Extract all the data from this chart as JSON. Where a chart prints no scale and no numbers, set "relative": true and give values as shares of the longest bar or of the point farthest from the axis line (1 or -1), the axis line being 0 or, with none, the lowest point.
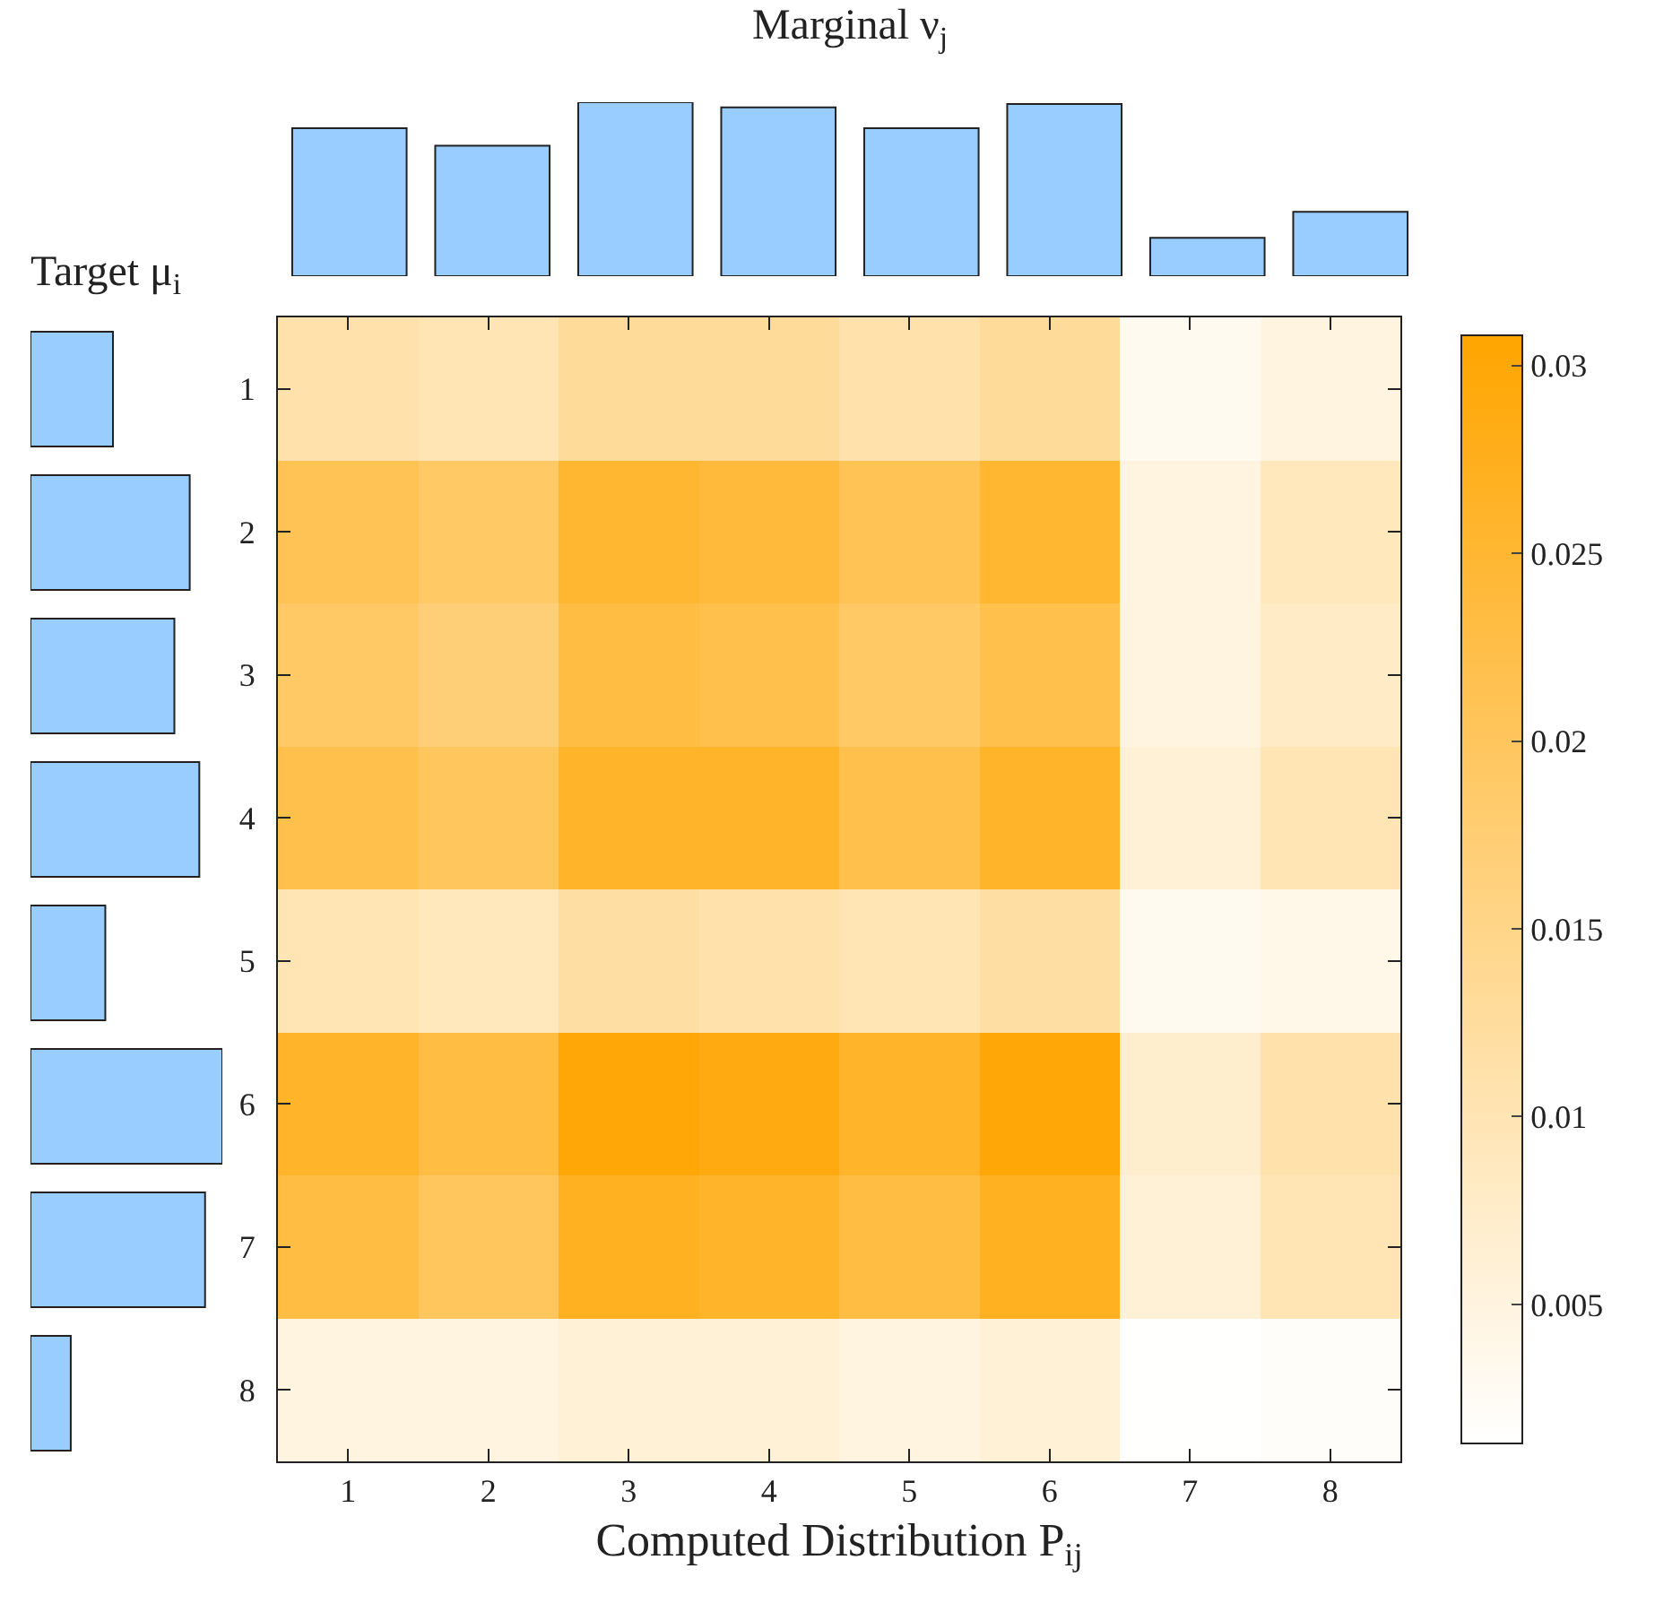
{
  "chart_data": [
    {
      "type": "bar",
      "title": "Marginal ν$_{j}$",
      "relative": true,
      "categories": [
        null,
        null,
        null,
        null,
        null,
        null,
        null,
        null
      ],
      "values": [
        0.85,
        0.75,
        1,
        0.97,
        0.85,
        0.99,
        0.22,
        0.37
      ],
      "color": "#99ccff"
    },
    {
      "type": "bar",
      "title": "Target μ$_{i}$",
      "relative": true,
      "orientation": "horizontal",
      "categories": [
        null,
        null,
        null,
        null,
        null,
        null,
        null,
        null
      ],
      "values": [
        0.43,
        0.83,
        0.75,
        0.88,
        0.39,
        1,
        0.91,
        0.21
      ],
      "color": "#99ccff"
    },
    {
      "type": "heatmap",
      "xlabel": "Computed Distribution P$_{ij}$",
      "categories": [
        "1",
        "2",
        "3",
        "4",
        "5",
        "6",
        "7",
        "8"
      ],
      "y_categories": [
        "1",
        "2",
        "3",
        "4",
        "5",
        "6",
        "7",
        "8"
      ],
      "cells": [
        [
          0.011,
          0.01,
          0.013,
          0.013,
          0.011,
          0.013,
          0.003,
          0.005
        ],
        [
          0.021,
          0.019,
          0.025,
          0.024,
          0.021,
          0.025,
          0.005,
          0.009
        ],
        [
          0.019,
          0.017,
          0.023,
          0.022,
          0.019,
          0.022,
          0.005,
          0.008
        ],
        [
          0.022,
          0.02,
          0.026,
          0.026,
          0.022,
          0.026,
          0.006,
          0.01
        ],
        [
          0.01,
          0.009,
          0.012,
          0.011,
          0.01,
          0.012,
          0.003,
          0.004
        ],
        [
          0.026,
          0.023,
          0.03,
          0.029,
          0.026,
          0.03,
          0.007,
          0.011
        ],
        [
          0.023,
          0.02,
          0.027,
          0.026,
          0.023,
          0.027,
          0.006,
          0.01
        ],
        [
          0.005,
          0.005,
          0.006,
          0.006,
          0.005,
          0.006,
          0.0014,
          0.002
        ]
      ],
      "clim": [
        0.0013,
        0.0308
      ],
      "cticks": [
        0.005,
        0.01,
        0.015,
        0.02,
        0.025,
        0.03
      ]
    }
  ]
}
